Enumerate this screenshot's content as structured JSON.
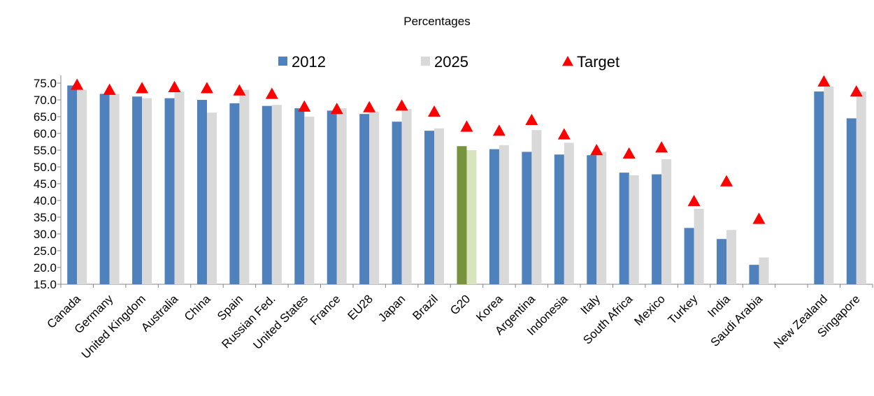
{
  "chart_data": {
    "type": "bar",
    "title": "Percentages",
    "categories": [
      "Canada",
      "Germany",
      "United Kingdom",
      "Australia",
      "China",
      "Spain",
      "Russian Fed.",
      "United States",
      "France",
      "EU28",
      "Japan",
      "Brazil",
      "G20",
      "Korea",
      "Argentina",
      "Indonesia",
      "Italy",
      "South Africa",
      "Mexico",
      "Turkey",
      "India",
      "Saudi Arabia",
      null,
      "New Zealand",
      "Singapore"
    ],
    "series": [
      {
        "name": "2012",
        "color": "#4f81bd",
        "highlight_color": "#77933c",
        "values": [
          74.3,
          71.8,
          71.0,
          70.5,
          70.0,
          69.0,
          68.2,
          67.5,
          66.8,
          65.8,
          63.5,
          60.8,
          56.2,
          55.3,
          54.5,
          53.7,
          53.5,
          48.3,
          47.8,
          31.8,
          28.5,
          20.8,
          null,
          72.5,
          64.5
        ]
      },
      {
        "name": "2025",
        "color": "#d9d9d9",
        "highlight_color": "#d7e4bd",
        "values": [
          73.0,
          71.8,
          70.5,
          72.5,
          66.2,
          73.0,
          68.5,
          65.0,
          67.5,
          66.5,
          67.3,
          61.5,
          55.0,
          56.5,
          61.0,
          57.2,
          54.5,
          47.5,
          52.3,
          37.5,
          31.2,
          23.0,
          null,
          74.0,
          72.5
        ]
      },
      {
        "name": "Target",
        "type": "marker",
        "color": "#ff0000",
        "values": [
          74.5,
          73.0,
          73.5,
          73.8,
          73.5,
          72.8,
          71.8,
          68.0,
          67.3,
          67.8,
          68.3,
          66.5,
          62.0,
          60.8,
          64.0,
          59.7,
          55.0,
          54.0,
          55.8,
          39.8,
          45.7,
          34.5,
          null,
          75.5,
          72.5
        ]
      }
    ],
    "highlight_category": "G20",
    "ylim": [
      15,
      77.3
    ],
    "yticks": [
      {
        "value": 15,
        "label": "15.0"
      },
      {
        "value": 20,
        "label": "20.0"
      },
      {
        "value": 25,
        "label": "25.0"
      },
      {
        "value": 30,
        "label": "30.0"
      },
      {
        "value": 35,
        "label": "35.0"
      },
      {
        "value": 40,
        "label": "40.0"
      },
      {
        "value": 45,
        "label": "45.0"
      },
      {
        "value": 50,
        "label": "50.0"
      },
      {
        "value": 55,
        "label": "55.0"
      },
      {
        "value": 60,
        "label": "60.0"
      },
      {
        "value": 65,
        "label": "65.0"
      },
      {
        "value": 70,
        "label": "70.0"
      },
      {
        "value": 75,
        "label": "75.0"
      }
    ],
    "grid": false,
    "legend": "top"
  }
}
